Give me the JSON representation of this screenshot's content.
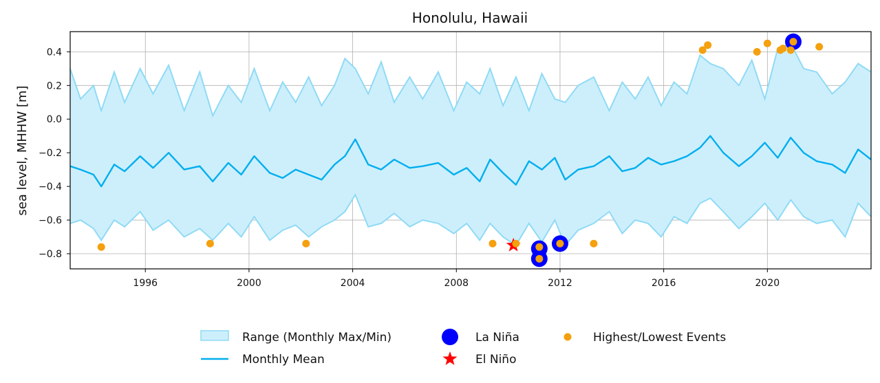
{
  "chart_data": {
    "type": "line",
    "title": "Honolulu, Hawaii",
    "xlabel": "",
    "ylabel": "sea level, MHHW [m]",
    "xlim": [
      1993.1,
      2024.0
    ],
    "ylim": [
      -0.89,
      0.52
    ],
    "x_ticks": [
      1996,
      2000,
      2004,
      2008,
      2012,
      2016,
      2020
    ],
    "x_tick_labels": [
      "1996",
      "2000",
      "2004",
      "2008",
      "2012",
      "2016",
      "2020"
    ],
    "y_ticks": [
      0.4,
      0.2,
      0.0,
      -0.2,
      -0.4,
      -0.6,
      -0.8
    ],
    "y_tick_labels": [
      "0.4",
      "0.2",
      "0.0",
      "−0.2",
      "−0.4",
      "−0.6",
      "−0.8"
    ],
    "grid": true,
    "legend_placement": "bottom-center",
    "colors": {
      "range_fill": "#cdeffc",
      "range_edge": "#8fdaf5",
      "mean": "#00aeef",
      "la_nina": "#0000ff",
      "el_nino": "#ff0000",
      "events": "#f5a00f"
    },
    "series": [
      {
        "name": "Monthly Mean",
        "kind": "mean",
        "x": [
          1993.1,
          1993.5,
          1994.0,
          1994.3,
          1994.8,
          1995.2,
          1995.8,
          1996.3,
          1996.9,
          1997.5,
          1998.1,
          1998.6,
          1999.2,
          1999.7,
          2000.2,
          2000.8,
          2001.3,
          2001.8,
          2002.3,
          2002.8,
          2003.3,
          2003.7,
          2004.1,
          2004.6,
          2005.1,
          2005.6,
          2006.2,
          2006.7,
          2007.3,
          2007.9,
          2008.4,
          2008.9,
          2009.3,
          2009.8,
          2010.3,
          2010.8,
          2011.3,
          2011.8,
          2012.2,
          2012.7,
          2013.3,
          2013.9,
          2014.4,
          2014.9,
          2015.4,
          2015.9,
          2016.4,
          2016.9,
          2017.4,
          2017.8,
          2018.3,
          2018.9,
          2019.4,
          2019.9,
          2020.4,
          2020.9,
          2021.4,
          2021.9,
          2022.5,
          2023.0,
          2023.5,
          2024.0
        ],
        "values": [
          -0.28,
          -0.3,
          -0.33,
          -0.4,
          -0.27,
          -0.31,
          -0.22,
          -0.29,
          -0.2,
          -0.3,
          -0.28,
          -0.37,
          -0.26,
          -0.33,
          -0.22,
          -0.32,
          -0.35,
          -0.3,
          -0.33,
          -0.36,
          -0.27,
          -0.22,
          -0.12,
          -0.27,
          -0.3,
          -0.24,
          -0.29,
          -0.28,
          -0.26,
          -0.33,
          -0.29,
          -0.37,
          -0.24,
          -0.32,
          -0.39,
          -0.25,
          -0.3,
          -0.23,
          -0.36,
          -0.3,
          -0.28,
          -0.22,
          -0.31,
          -0.29,
          -0.23,
          -0.27,
          -0.25,
          -0.22,
          -0.17,
          -0.1,
          -0.2,
          -0.28,
          -0.22,
          -0.14,
          -0.23,
          -0.11,
          -0.2,
          -0.25,
          -0.27,
          -0.32,
          -0.18,
          -0.24
        ]
      },
      {
        "name": "Range (Monthly Max/Min)",
        "kind": "range",
        "x": [
          1993.1,
          1993.5,
          1994.0,
          1994.3,
          1994.8,
          1995.2,
          1995.8,
          1996.3,
          1996.9,
          1997.5,
          1998.1,
          1998.6,
          1999.2,
          1999.7,
          2000.2,
          2000.8,
          2001.3,
          2001.8,
          2002.3,
          2002.8,
          2003.3,
          2003.7,
          2004.1,
          2004.6,
          2005.1,
          2005.6,
          2006.2,
          2006.7,
          2007.3,
          2007.9,
          2008.4,
          2008.9,
          2009.3,
          2009.8,
          2010.3,
          2010.8,
          2011.3,
          2011.8,
          2012.2,
          2012.7,
          2013.3,
          2013.9,
          2014.4,
          2014.9,
          2015.4,
          2015.9,
          2016.4,
          2016.9,
          2017.4,
          2017.8,
          2018.3,
          2018.9,
          2019.4,
          2019.9,
          2020.4,
          2020.9,
          2021.4,
          2021.9,
          2022.5,
          2023.0,
          2023.5,
          2024.0
        ],
        "max": [
          0.3,
          0.12,
          0.2,
          0.05,
          0.28,
          0.1,
          0.3,
          0.15,
          0.32,
          0.05,
          0.28,
          0.02,
          0.2,
          0.1,
          0.3,
          0.05,
          0.22,
          0.1,
          0.25,
          0.08,
          0.2,
          0.36,
          0.3,
          0.15,
          0.34,
          0.1,
          0.25,
          0.12,
          0.28,
          0.05,
          0.22,
          0.15,
          0.3,
          0.08,
          0.25,
          0.05,
          0.27,
          0.12,
          0.1,
          0.2,
          0.25,
          0.05,
          0.22,
          0.12,
          0.25,
          0.08,
          0.22,
          0.15,
          0.38,
          0.33,
          0.3,
          0.2,
          0.35,
          0.12,
          0.42,
          0.45,
          0.3,
          0.28,
          0.15,
          0.22,
          0.33,
          0.28
        ],
        "min": [
          -0.62,
          -0.6,
          -0.65,
          -0.72,
          -0.6,
          -0.64,
          -0.55,
          -0.66,
          -0.6,
          -0.7,
          -0.65,
          -0.72,
          -0.62,
          -0.7,
          -0.58,
          -0.72,
          -0.66,
          -0.63,
          -0.7,
          -0.64,
          -0.6,
          -0.55,
          -0.45,
          -0.64,
          -0.62,
          -0.56,
          -0.64,
          -0.6,
          -0.62,
          -0.68,
          -0.62,
          -0.72,
          -0.62,
          -0.7,
          -0.75,
          -0.62,
          -0.73,
          -0.6,
          -0.75,
          -0.66,
          -0.62,
          -0.55,
          -0.68,
          -0.6,
          -0.62,
          -0.7,
          -0.58,
          -0.62,
          -0.5,
          -0.47,
          -0.55,
          -0.65,
          -0.58,
          -0.5,
          -0.6,
          -0.48,
          -0.58,
          -0.62,
          -0.6,
          -0.7,
          -0.5,
          -0.58
        ]
      },
      {
        "name": "Highest/Lowest Events",
        "kind": "events",
        "points": [
          {
            "x": 1994.3,
            "y": -0.76
          },
          {
            "x": 1998.5,
            "y": -0.74
          },
          {
            "x": 2002.2,
            "y": -0.74
          },
          {
            "x": 2009.4,
            "y": -0.74
          },
          {
            "x": 2010.3,
            "y": -0.74
          },
          {
            "x": 2011.2,
            "y": -0.76
          },
          {
            "x": 2011.2,
            "y": -0.83
          },
          {
            "x": 2012.0,
            "y": -0.74
          },
          {
            "x": 2013.3,
            "y": -0.74
          },
          {
            "x": 2017.5,
            "y": 0.41
          },
          {
            "x": 2017.7,
            "y": 0.44
          },
          {
            "x": 2019.6,
            "y": 0.4
          },
          {
            "x": 2020.0,
            "y": 0.45
          },
          {
            "x": 2020.5,
            "y": 0.41
          },
          {
            "x": 2020.6,
            "y": 0.42
          },
          {
            "x": 2020.9,
            "y": 0.41
          },
          {
            "x": 2021.0,
            "y": 0.46
          },
          {
            "x": 2022.0,
            "y": 0.43
          }
        ]
      },
      {
        "name": "La Niña",
        "kind": "la_nina",
        "points": [
          {
            "x": 2011.2,
            "y": -0.77
          },
          {
            "x": 2011.2,
            "y": -0.83
          },
          {
            "x": 2012.0,
            "y": -0.74
          },
          {
            "x": 2021.0,
            "y": 0.46
          }
        ]
      },
      {
        "name": "El Niño",
        "kind": "el_nino",
        "points": [
          {
            "x": 2010.2,
            "y": -0.75
          }
        ]
      }
    ],
    "legend": [
      {
        "key": "range",
        "label": "Range (Monthly Max/Min)"
      },
      {
        "key": "mean",
        "label": "Monthly Mean"
      },
      {
        "key": "la_nina",
        "label": "La Niña"
      },
      {
        "key": "el_nino",
        "label": "El Niño"
      },
      {
        "key": "events",
        "label": "Highest/Lowest Events"
      }
    ]
  }
}
